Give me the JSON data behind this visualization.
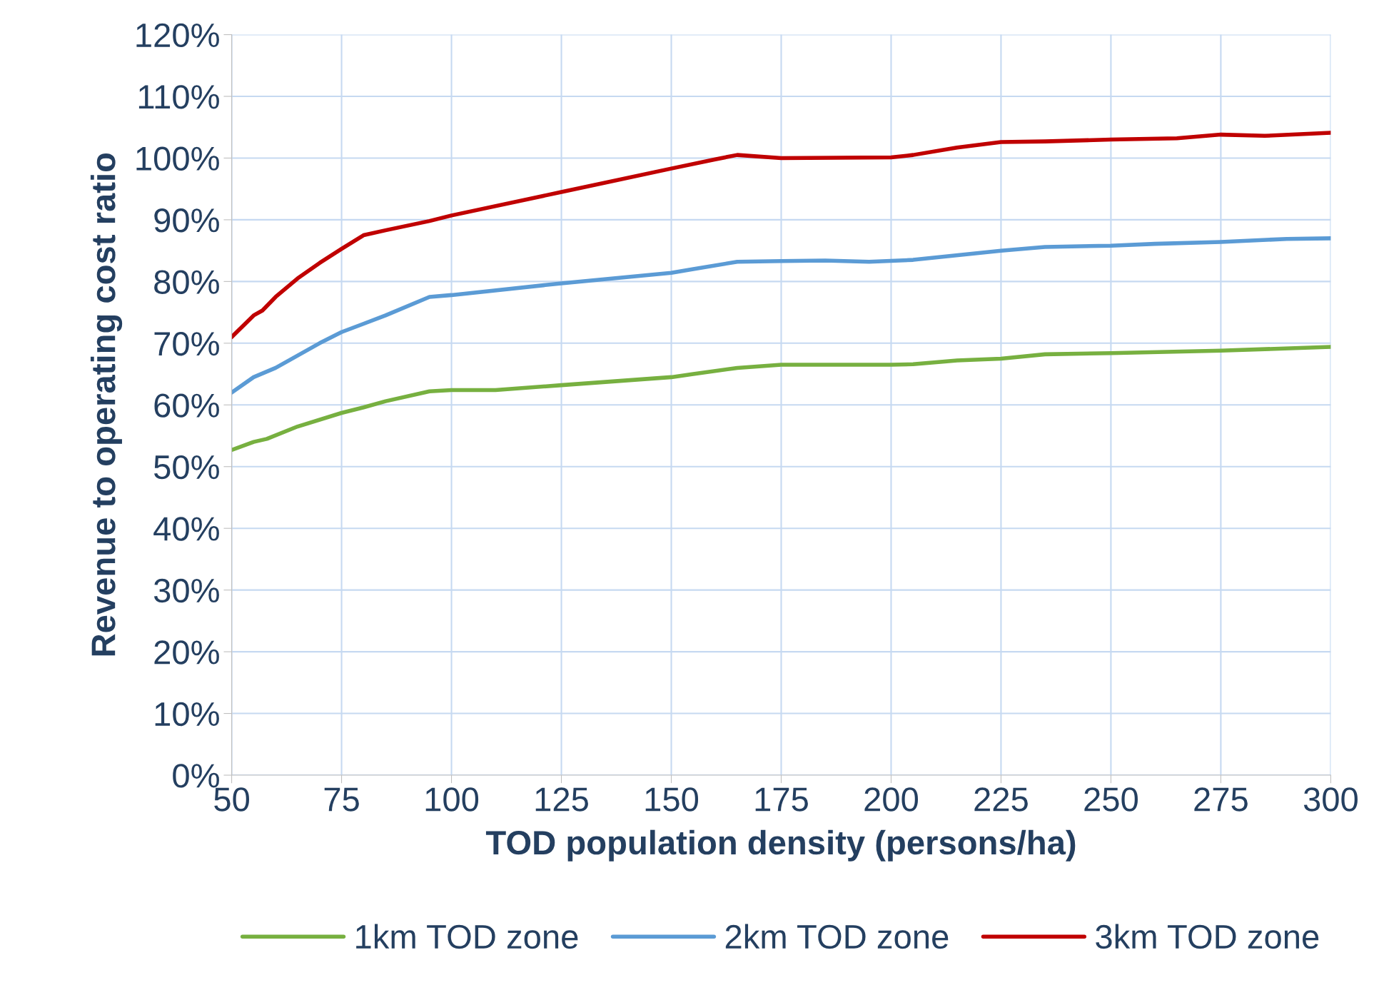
{
  "chart_data": {
    "type": "line",
    "xlabel": "TOD population density (persons/ha)",
    "ylabel": "Revenue to operating cost ratio",
    "xlim": [
      50,
      300
    ],
    "xticks": [
      50,
      75,
      100,
      125,
      150,
      175,
      200,
      225,
      250,
      275,
      300
    ],
    "ylim": [
      0,
      120
    ],
    "yticks": [
      {
        "value": 0,
        "label": "0%"
      },
      {
        "value": 10,
        "label": "10%"
      },
      {
        "value": 20,
        "label": "20%"
      },
      {
        "value": 30,
        "label": "30%"
      },
      {
        "value": 40,
        "label": "40%"
      },
      {
        "value": 50,
        "label": "50%"
      },
      {
        "value": 60,
        "label": "60%"
      },
      {
        "value": 70,
        "label": "70%"
      },
      {
        "value": 80,
        "label": "80%"
      },
      {
        "value": 90,
        "label": "90%"
      },
      {
        "value": 100,
        "label": "100%"
      },
      {
        "value": 110,
        "label": "110%"
      },
      {
        "value": 120,
        "label": "120%"
      }
    ],
    "grid": true,
    "legend": "bottom",
    "marker": "none",
    "line_style": "solid",
    "series": [
      {
        "name": "1km TOD zone",
        "color": "#77b040",
        "x": [
          50,
          55,
          58,
          65,
          75,
          80,
          85,
          95,
          100,
          110,
          125,
          150,
          155,
          165,
          175,
          200,
          205,
          215,
          225,
          235,
          250,
          275,
          300
        ],
        "values": [
          52.7,
          54,
          54.5,
          56.5,
          58.7,
          59.6,
          60.6,
          62.2,
          62.4,
          62.4,
          63.2,
          64.5,
          65,
          66,
          66.5,
          66.5,
          66.6,
          67.2,
          67.5,
          68.2,
          68.4,
          68.8,
          69.4
        ]
      },
      {
        "name": "2km TOD zone",
        "color": "#5b9bd5",
        "x": [
          50,
          55,
          60,
          65,
          70,
          75,
          85,
          95,
          100,
          125,
          150,
          155,
          165,
          175,
          185,
          195,
          205,
          225,
          235,
          250,
          260,
          275,
          290,
          300
        ],
        "values": [
          62,
          64.5,
          66,
          68,
          70,
          71.8,
          74.5,
          77.5,
          77.8,
          79.7,
          81.4,
          82,
          83.2,
          83.3,
          83.4,
          83.2,
          83.5,
          85,
          85.6,
          85.8,
          86.1,
          86.4,
          86.9,
          87
        ]
      },
      {
        "name": "3km TOD zone",
        "color": "#c00000",
        "x": [
          50,
          55,
          57,
          60,
          65,
          70,
          75,
          80,
          85,
          95,
          100,
          125,
          150,
          160,
          165,
          175,
          200,
          205,
          215,
          225,
          235,
          250,
          265,
          275,
          285,
          300
        ],
        "values": [
          71,
          74.5,
          75.3,
          77.5,
          80.5,
          83,
          85.3,
          87.5,
          88.3,
          89.8,
          90.7,
          94.5,
          98.3,
          99.8,
          100.5,
          100,
          100.1,
          100.5,
          101.7,
          102.6,
          102.7,
          103,
          103.2,
          103.8,
          103.6,
          104.1
        ]
      }
    ]
  }
}
